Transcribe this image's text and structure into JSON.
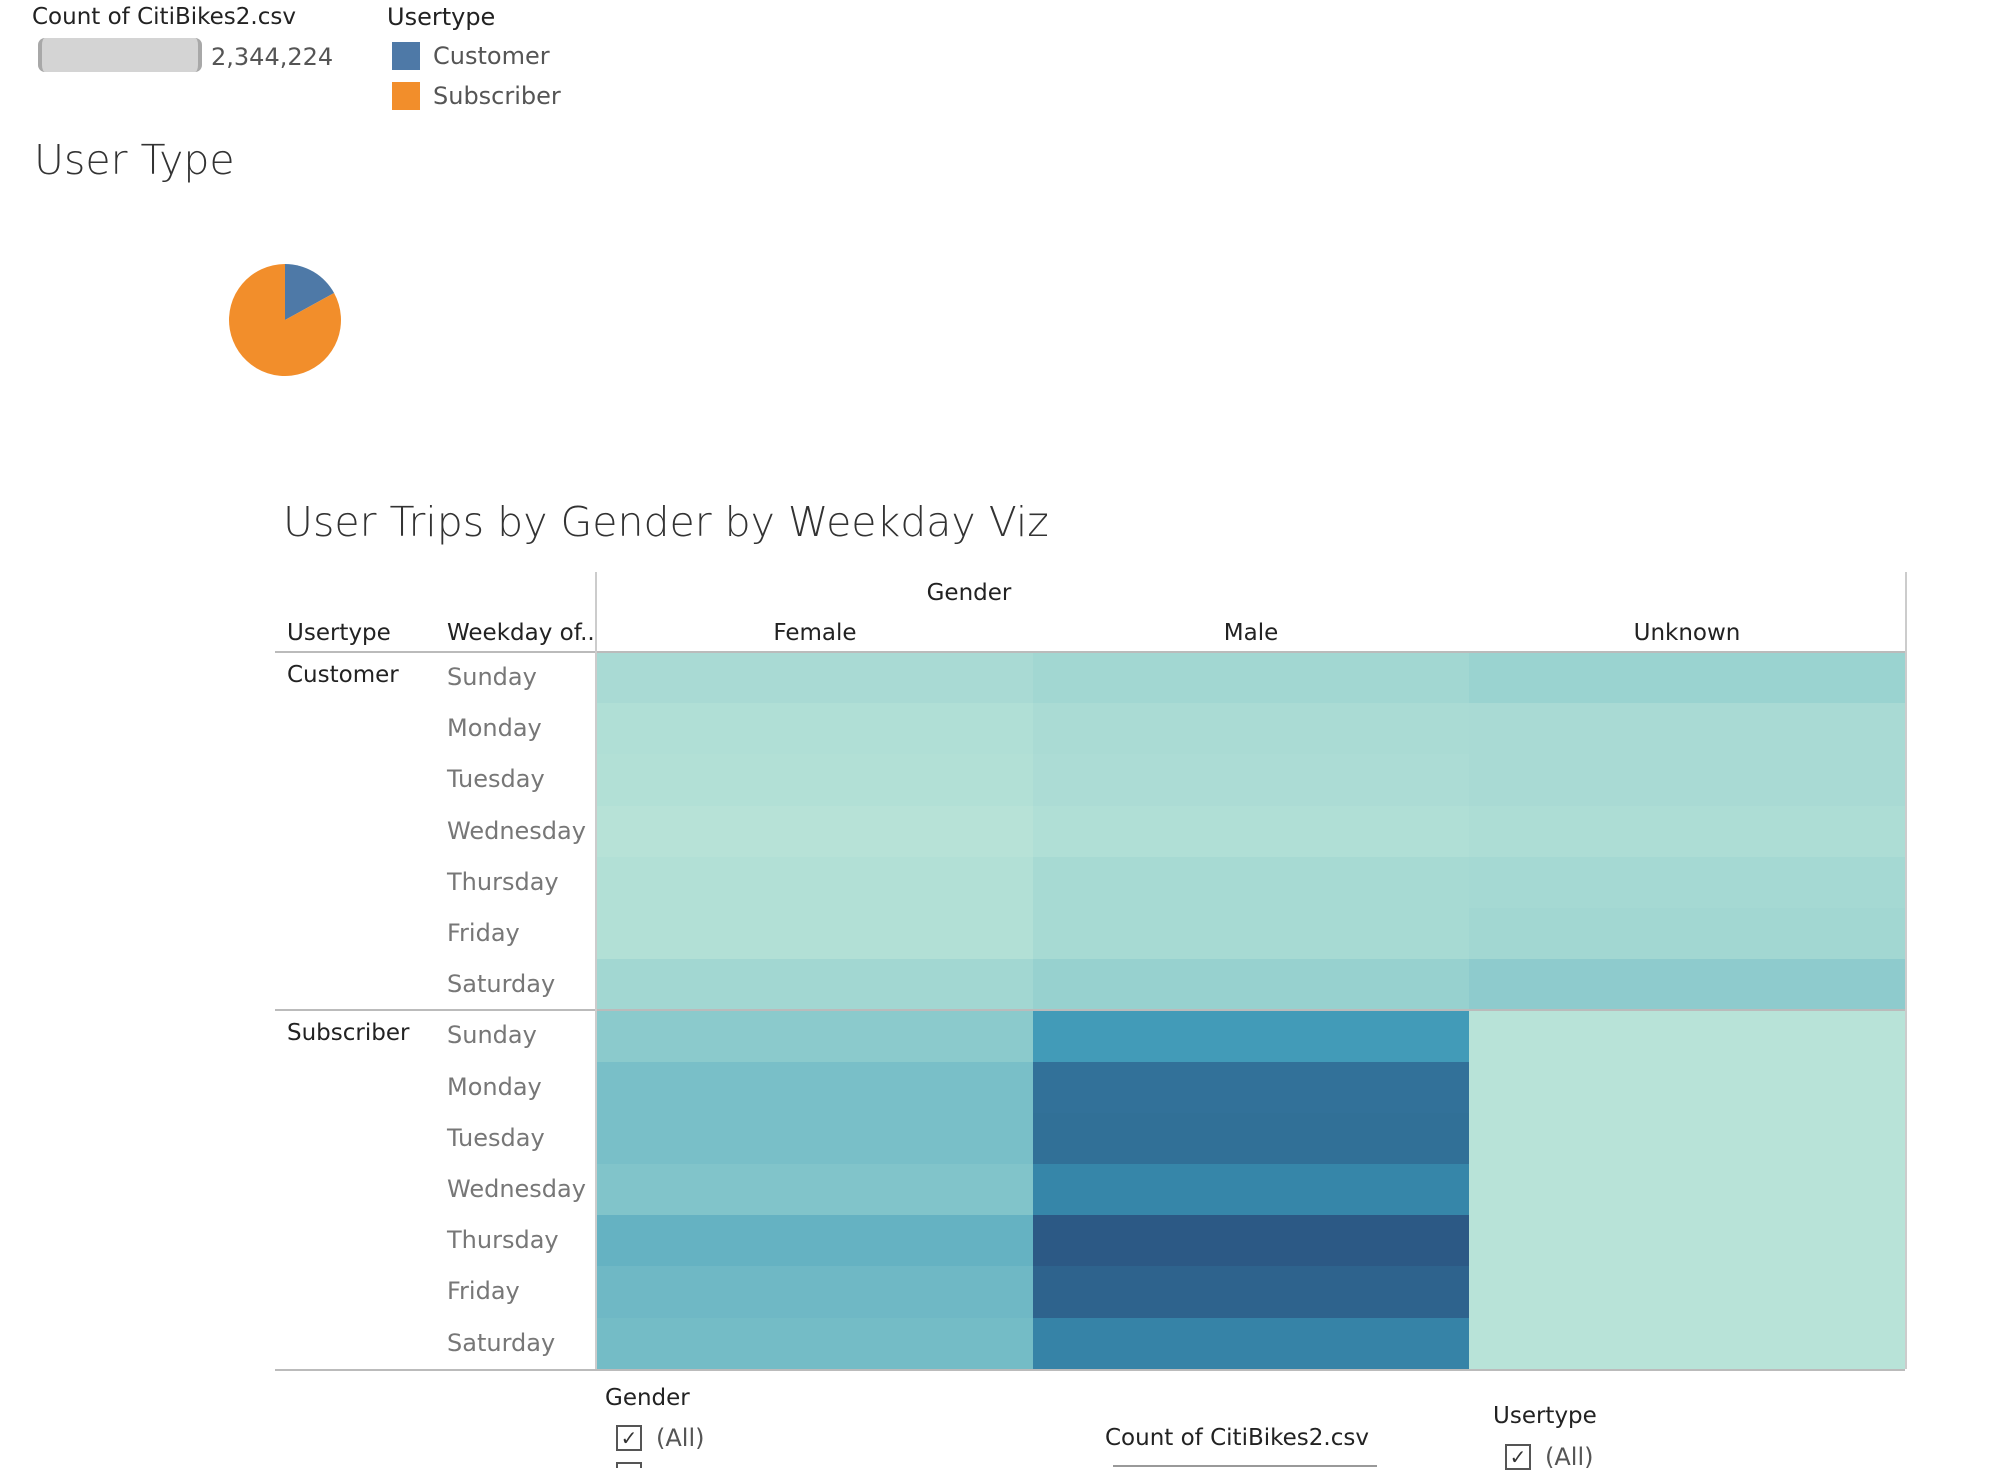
{
  "size_legend": {
    "title": "Count of CitiBikes2.csv",
    "value": "2,344,224"
  },
  "color_legend": {
    "title": "Usertype",
    "items": [
      {
        "label": "Customer",
        "color": "#4e79a7"
      },
      {
        "label": "Subscriber",
        "color": "#f28e2b"
      }
    ]
  },
  "pie_title": "User Type",
  "heatmap_title": "User Trips by Gender by Weekday Viz",
  "heatmap_headers": {
    "usertype": "Usertype",
    "weekday": "Weekday of..",
    "gender": "Gender"
  },
  "filters": {
    "gender": {
      "title": "Gender",
      "option": "(All)"
    },
    "count": {
      "title": "Count of CitiBikes2.csv"
    },
    "usertype": {
      "title": "Usertype",
      "option": "(All)"
    }
  },
  "colors": {
    "customer": "#4e79a7",
    "subscriber": "#f28e2b",
    "heat_low": "#bde6d9",
    "heat_high": "#2c5985"
  },
  "chart_data": [
    {
      "type": "pie",
      "title": "User Type",
      "categories": [
        "Customer",
        "Subscriber"
      ],
      "values": [
        0.17,
        0.83
      ],
      "colors": [
        "#4e79a7",
        "#f28e2b"
      ]
    },
    {
      "type": "heatmap",
      "title": "User Trips by Gender by Weekday Viz",
      "columns": [
        "Female",
        "Male",
        "Unknown"
      ],
      "groups": [
        {
          "name": "Customer",
          "rows": [
            "Sunday",
            "Monday",
            "Tuesday",
            "Wednesday",
            "Thursday",
            "Friday",
            "Saturday"
          ],
          "values": [
            [
              0.13,
              0.17,
              0.22
            ],
            [
              0.08,
              0.12,
              0.13
            ],
            [
              0.07,
              0.11,
              0.13
            ],
            [
              0.04,
              0.08,
              0.1
            ],
            [
              0.07,
              0.14,
              0.15
            ],
            [
              0.07,
              0.14,
              0.17
            ],
            [
              0.17,
              0.24,
              0.3
            ]
          ]
        },
        {
          "name": "Subscriber",
          "rows": [
            "Sunday",
            "Monday",
            "Tuesday",
            "Wednesday",
            "Thursday",
            "Friday",
            "Saturday"
          ],
          "values": [
            [
              0.32,
              0.62,
              0.03
            ],
            [
              0.4,
              0.86,
              0.03
            ],
            [
              0.4,
              0.87,
              0.03
            ],
            [
              0.37,
              0.74,
              0.03
            ],
            [
              0.48,
              1.0,
              0.03
            ],
            [
              0.44,
              0.94,
              0.03
            ],
            [
              0.42,
              0.76,
              0.03
            ]
          ]
        }
      ]
    }
  ]
}
